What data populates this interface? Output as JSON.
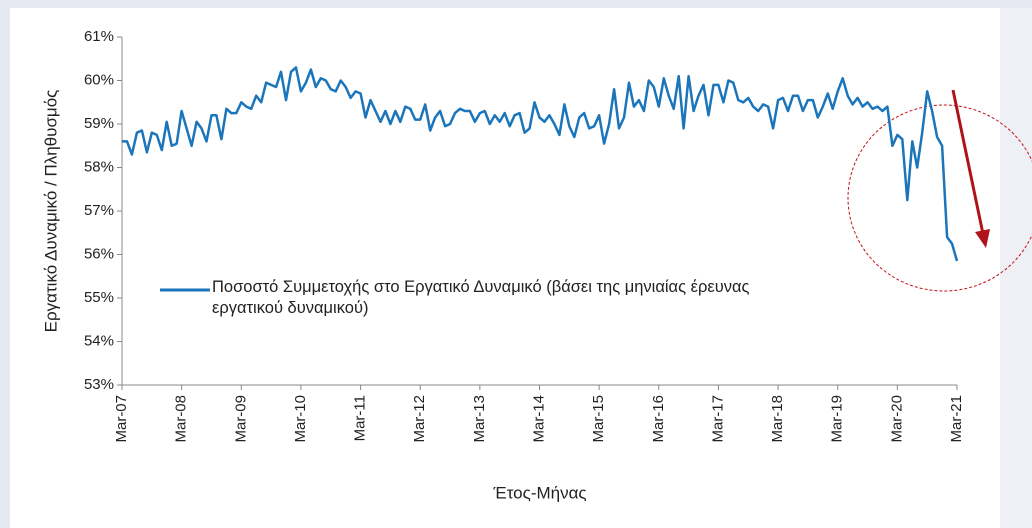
{
  "chart_data": {
    "type": "line",
    "y_label": "Εργατικό Δυναμικό / Πληθυσμός",
    "x_label": "Έτος-Μήνας",
    "categories": [
      "Mar-07",
      null,
      null,
      null,
      null,
      null,
      null,
      null,
      null,
      null,
      null,
      null,
      "Mar-08",
      null,
      null,
      null,
      null,
      null,
      null,
      null,
      null,
      null,
      null,
      null,
      "Mar-09",
      null,
      null,
      null,
      null,
      null,
      null,
      null,
      null,
      null,
      null,
      null,
      "Mar-10",
      null,
      null,
      null,
      null,
      null,
      null,
      null,
      null,
      null,
      null,
      null,
      "Mar-11",
      null,
      null,
      null,
      null,
      null,
      null,
      null,
      null,
      null,
      null,
      null,
      "Mar-12",
      null,
      null,
      null,
      null,
      null,
      null,
      null,
      null,
      null,
      null,
      null,
      "Mar-13",
      null,
      null,
      null,
      null,
      null,
      null,
      null,
      null,
      null,
      null,
      null,
      "Mar-14",
      null,
      null,
      null,
      null,
      null,
      null,
      null,
      null,
      null,
      null,
      null,
      "Mar-15",
      null,
      null,
      null,
      null,
      null,
      null,
      null,
      null,
      null,
      null,
      null,
      "Mar-16",
      null,
      null,
      null,
      null,
      null,
      null,
      null,
      null,
      null,
      null,
      null,
      "Mar-17",
      null,
      null,
      null,
      null,
      null,
      null,
      null,
      null,
      null,
      null,
      null,
      "Mar-18",
      null,
      null,
      null,
      null,
      null,
      null,
      null,
      null,
      null,
      null,
      null,
      "Mar-19",
      null,
      null,
      null,
      null,
      null,
      null,
      null,
      null,
      null,
      null,
      null,
      "Mar-20",
      null,
      null,
      null,
      null,
      null,
      null,
      null,
      null,
      null,
      null,
      null,
      "Mar-21"
    ],
    "series": [
      {
        "name": "Ποσοστό Συμμετοχής στο Εργατικό Δυναμικό (βάσει της μηνιαίας έρευνας εργατικού δυναμικού)",
        "color": "#1b75bb",
        "values": [
          58.6,
          58.6,
          58.3,
          58.8,
          58.85,
          58.35,
          58.8,
          58.75,
          58.4,
          59.05,
          58.5,
          58.55,
          59.3,
          58.9,
          58.5,
          59.05,
          58.9,
          58.6,
          59.2,
          59.2,
          58.65,
          59.35,
          59.25,
          59.25,
          59.5,
          59.4,
          59.35,
          59.65,
          59.5,
          59.95,
          59.9,
          59.85,
          60.2,
          59.55,
          60.2,
          60.3,
          59.75,
          59.95,
          60.25,
          59.85,
          60.05,
          60.0,
          59.8,
          59.75,
          60.0,
          59.85,
          59.6,
          59.75,
          59.7,
          59.15,
          59.55,
          59.3,
          59.05,
          59.3,
          59.0,
          59.3,
          59.05,
          59.4,
          59.35,
          59.1,
          59.1,
          59.45,
          58.85,
          59.15,
          59.3,
          58.95,
          59.0,
          59.25,
          59.35,
          59.3,
          59.3,
          59.05,
          59.25,
          59.3,
          59.0,
          59.2,
          59.05,
          59.25,
          58.95,
          59.2,
          59.25,
          58.8,
          58.9,
          59.5,
          59.15,
          59.05,
          59.2,
          59.0,
          58.75,
          59.45,
          58.95,
          58.7,
          59.15,
          59.25,
          58.9,
          58.95,
          59.2,
          58.55,
          59.0,
          59.8,
          58.9,
          59.15,
          59.95,
          59.4,
          59.55,
          59.3,
          60.0,
          59.85,
          59.4,
          60.05,
          59.65,
          59.35,
          60.1,
          58.9,
          60.1,
          59.3,
          59.65,
          59.9,
          59.2,
          59.9,
          59.9,
          59.5,
          60.0,
          59.95,
          59.55,
          59.5,
          59.6,
          59.4,
          59.3,
          59.45,
          59.4,
          58.9,
          59.55,
          59.6,
          59.3,
          59.65,
          59.65,
          59.3,
          59.55,
          59.55,
          59.15,
          59.4,
          59.7,
          59.35,
          59.75,
          60.05,
          59.65,
          59.45,
          59.6,
          59.4,
          59.5,
          59.35,
          59.4,
          59.3,
          59.4,
          58.5,
          58.75,
          58.65,
          57.25,
          58.6,
          58.0,
          58.8,
          59.75,
          59.3,
          58.7,
          58.5,
          56.4,
          56.25,
          55.85
        ]
      }
    ],
    "ylim": [
      53,
      61
    ],
    "yticks": [
      {
        "value": 53,
        "label": "53%"
      },
      {
        "value": 54,
        "label": "54%"
      },
      {
        "value": 55,
        "label": "55%"
      },
      {
        "value": 56,
        "label": "56%"
      },
      {
        "value": 57,
        "label": "57%"
      },
      {
        "value": 58,
        "label": "58%"
      },
      {
        "value": 59,
        "label": "59%"
      },
      {
        "value": 60,
        "label": "60%"
      },
      {
        "value": 61,
        "label": "61%"
      }
    ],
    "grid": false,
    "legend": "left"
  }
}
